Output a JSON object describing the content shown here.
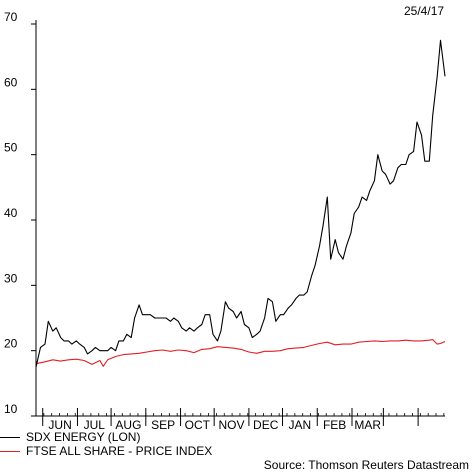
{
  "date": "25/4/17",
  "source": "Source: Thomson Reuters Datastream",
  "chart_data": {
    "type": "line",
    "ylim": [
      10,
      70
    ],
    "yticks": [
      10,
      20,
      30,
      40,
      50,
      60,
      70
    ],
    "months": [
      "JUN",
      "JUL",
      "AUG",
      "SEP",
      "OCT",
      "NOV",
      "DEC",
      "JAN",
      "FEB",
      "MAR"
    ],
    "x_start": "2016-04-25",
    "x_end": "2017-04-25",
    "series": [
      {
        "name": "SDX ENERGY (LON)",
        "color": "#000000",
        "x": [
          "2016-04-25",
          "2016-04-29",
          "2016-05-03",
          "2016-05-06",
          "2016-05-10",
          "2016-05-13",
          "2016-05-17",
          "2016-05-20",
          "2016-05-24",
          "2016-05-27",
          "2016-05-31",
          "2016-06-03",
          "2016-06-07",
          "2016-06-10",
          "2016-06-14",
          "2016-06-17",
          "2016-06-21",
          "2016-06-24",
          "2016-06-28",
          "2016-07-01",
          "2016-07-05",
          "2016-07-08",
          "2016-07-12",
          "2016-07-15",
          "2016-07-19",
          "2016-07-22",
          "2016-07-26",
          "2016-07-29",
          "2016-08-02",
          "2016-08-05",
          "2016-08-09",
          "2016-08-12",
          "2016-08-16",
          "2016-08-19",
          "2016-08-23",
          "2016-08-26",
          "2016-08-30",
          "2016-09-02",
          "2016-09-06",
          "2016-09-09",
          "2016-09-13",
          "2016-09-16",
          "2016-09-20",
          "2016-09-23",
          "2016-09-27",
          "2016-09-30",
          "2016-10-04",
          "2016-10-07",
          "2016-10-11",
          "2016-10-14",
          "2016-10-18",
          "2016-10-21",
          "2016-10-25",
          "2016-10-28",
          "2016-11-01",
          "2016-11-04",
          "2016-11-08",
          "2016-11-11",
          "2016-11-15",
          "2016-11-18",
          "2016-11-22",
          "2016-11-25",
          "2016-11-29",
          "2016-12-02",
          "2016-12-06",
          "2016-12-09",
          "2016-12-13",
          "2016-12-16",
          "2016-12-20",
          "2016-12-23",
          "2016-12-27",
          "2016-12-30",
          "2017-01-03",
          "2017-01-06",
          "2017-01-10",
          "2017-01-13",
          "2017-01-17",
          "2017-01-20",
          "2017-01-24",
          "2017-01-27",
          "2017-01-31",
          "2017-02-03",
          "2017-02-07",
          "2017-02-10",
          "2017-02-14",
          "2017-02-17",
          "2017-02-21",
          "2017-02-24",
          "2017-02-28",
          "2017-03-03",
          "2017-03-07",
          "2017-03-10",
          "2017-03-14",
          "2017-03-17",
          "2017-03-21",
          "2017-03-24",
          "2017-03-28",
          "2017-03-31",
          "2017-04-04",
          "2017-04-07",
          "2017-04-11",
          "2017-04-14",
          "2017-04-18",
          "2017-04-21",
          "2017-04-25"
        ],
        "y": [
          17.5,
          20.5,
          21.0,
          24.5,
          23.0,
          23.5,
          22.0,
          21.5,
          21.5,
          21.0,
          21.5,
          21.0,
          20.5,
          19.5,
          20.0,
          20.5,
          20.0,
          20.0,
          20.0,
          20.5,
          20.0,
          21.5,
          21.5,
          22.5,
          22.0,
          25.0,
          27.0,
          25.5,
          25.5,
          25.5,
          25.0,
          25.0,
          25.0,
          25.0,
          24.5,
          25.0,
          24.5,
          23.5,
          23.0,
          23.5,
          23.0,
          23.5,
          24.0,
          25.5,
          25.5,
          22.5,
          21.5,
          23.0,
          27.5,
          26.5,
          26.0,
          25.0,
          26.0,
          24.0,
          23.5,
          22.0,
          22.5,
          23.0,
          25.0,
          28.0,
          27.5,
          24.5,
          25.5,
          25.5,
          26.5,
          27.0,
          28.0,
          28.5,
          28.5,
          29.0,
          31.5,
          33.0,
          36.0,
          39.0,
          43.5,
          34.0,
          37.0,
          35.0,
          34.0,
          36.0,
          38.0,
          41.0,
          42.0,
          43.5,
          43.0,
          44.5,
          46.0,
          50.0,
          47.5,
          47.0,
          45.5,
          46.0,
          48.0,
          48.5,
          48.5,
          50.0,
          50.5,
          55.0,
          53.0,
          49.0,
          49.0,
          56.0,
          62.0,
          67.5,
          62.0
        ]
      },
      {
        "name": "FTSE ALL SHARE - PRICE INDEX",
        "color": "#e31e24",
        "x": [
          "2016-04-25",
          "2016-05-03",
          "2016-05-10",
          "2016-05-17",
          "2016-05-24",
          "2016-05-31",
          "2016-06-07",
          "2016-06-14",
          "2016-06-21",
          "2016-06-24",
          "2016-06-28",
          "2016-07-05",
          "2016-07-12",
          "2016-07-19",
          "2016-07-26",
          "2016-08-02",
          "2016-08-09",
          "2016-08-16",
          "2016-08-23",
          "2016-08-30",
          "2016-09-06",
          "2016-09-13",
          "2016-09-20",
          "2016-09-27",
          "2016-10-04",
          "2016-10-11",
          "2016-10-18",
          "2016-10-25",
          "2016-11-01",
          "2016-11-08",
          "2016-11-15",
          "2016-11-22",
          "2016-11-29",
          "2016-12-06",
          "2016-12-13",
          "2016-12-20",
          "2016-12-27",
          "2017-01-03",
          "2017-01-10",
          "2017-01-17",
          "2017-01-24",
          "2017-01-31",
          "2017-02-07",
          "2017-02-14",
          "2017-02-21",
          "2017-02-28",
          "2017-03-07",
          "2017-03-14",
          "2017-03-21",
          "2017-03-28",
          "2017-04-04",
          "2017-04-11",
          "2017-04-14",
          "2017-04-18",
          "2017-04-21",
          "2017-04-25"
        ],
        "y": [
          18.0,
          18.3,
          18.6,
          18.4,
          18.6,
          18.7,
          18.5,
          17.9,
          18.5,
          17.6,
          18.6,
          19.1,
          19.4,
          19.5,
          19.6,
          19.8,
          20.0,
          20.1,
          19.9,
          20.1,
          20.0,
          19.7,
          20.2,
          20.3,
          20.6,
          20.5,
          20.4,
          20.2,
          19.8,
          19.6,
          19.9,
          19.9,
          20.0,
          20.3,
          20.4,
          20.5,
          20.8,
          21.1,
          21.3,
          20.9,
          21.0,
          21.0,
          21.3,
          21.4,
          21.5,
          21.4,
          21.5,
          21.5,
          21.6,
          21.5,
          21.5,
          21.6,
          21.7,
          21.0,
          21.1,
          21.4
        ]
      }
    ]
  }
}
